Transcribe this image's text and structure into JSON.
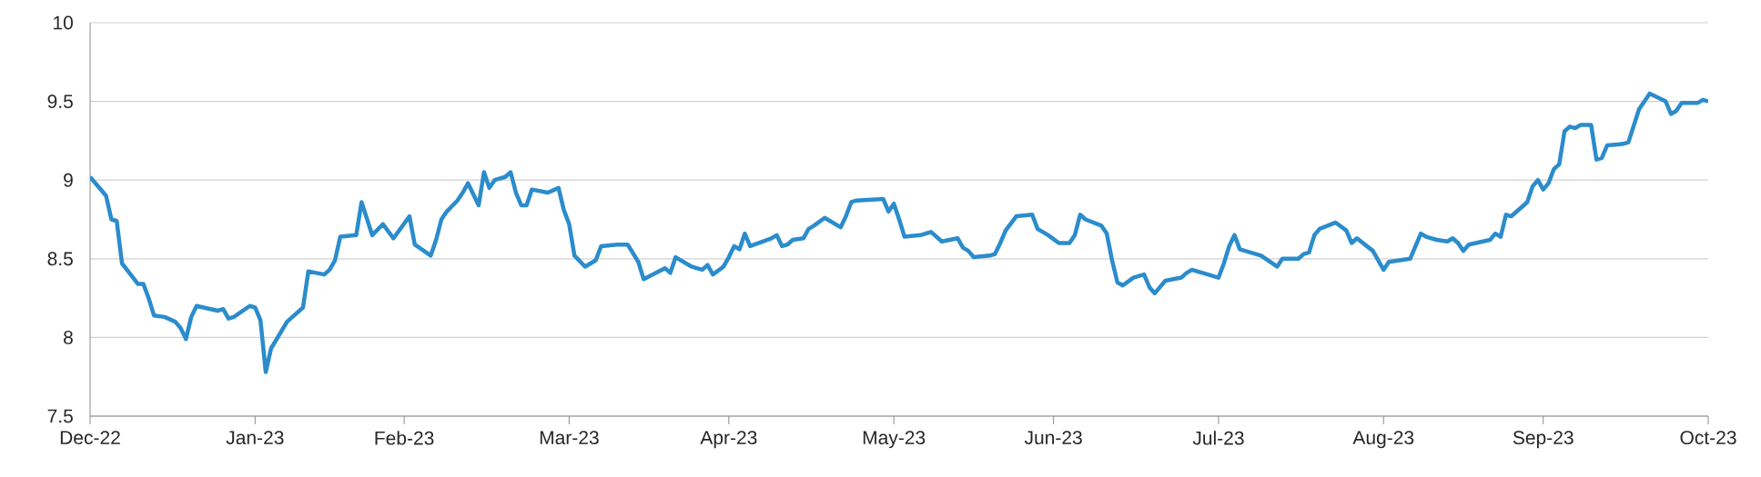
{
  "chart_data": {
    "type": "line",
    "x": [
      "2022-12-31",
      "2023-01-03",
      "2023-01-04",
      "2023-01-05",
      "2023-01-06",
      "2023-01-09",
      "2023-01-10",
      "2023-01-11",
      "2023-01-12",
      "2023-01-14",
      "2023-01-16",
      "2023-01-17",
      "2023-01-18",
      "2023-01-19",
      "2023-01-20",
      "2023-01-24",
      "2023-01-25",
      "2023-01-26",
      "2023-01-27",
      "2023-01-30",
      "2023-01-31",
      "2023-02-01",
      "2023-02-02",
      "2023-02-03",
      "2023-02-06",
      "2023-02-07",
      "2023-02-09",
      "2023-02-10",
      "2023-02-13",
      "2023-02-14",
      "2023-02-15",
      "2023-02-16",
      "2023-02-19",
      "2023-02-20",
      "2023-02-22",
      "2023-02-24",
      "2023-02-26",
      "2023-03-01",
      "2023-03-02",
      "2023-03-05",
      "2023-03-06",
      "2023-03-07",
      "2023-03-08",
      "2023-03-10",
      "2023-03-11",
      "2023-03-12",
      "2023-03-14",
      "2023-03-15",
      "2023-03-16",
      "2023-03-17",
      "2023-03-19",
      "2023-03-20",
      "2023-03-21",
      "2023-03-22",
      "2023-03-23",
      "2023-03-24",
      "2023-03-27",
      "2023-03-29",
      "2023-03-30",
      "2023-03-31",
      "2023-04-01",
      "2023-04-03",
      "2023-04-05",
      "2023-04-06",
      "2023-04-09",
      "2023-04-11",
      "2023-04-13",
      "2023-04-14",
      "2023-04-18",
      "2023-04-19",
      "2023-04-20",
      "2023-04-23",
      "2023-04-25",
      "2023-04-26",
      "2023-04-27",
      "2023-04-29",
      "2023-04-30",
      "2023-05-01",
      "2023-05-02",
      "2023-05-03",
      "2023-05-04",
      "2023-05-08",
      "2023-05-09",
      "2023-05-10",
      "2023-05-11",
      "2023-05-12",
      "2023-05-14",
      "2023-05-15",
      "2023-05-16",
      "2023-05-18",
      "2023-05-21",
      "2023-05-22",
      "2023-05-23",
      "2023-05-24",
      "2023-05-29",
      "2023-05-30",
      "2023-05-31",
      "2023-06-01",
      "2023-06-02",
      "2023-06-05",
      "2023-06-07",
      "2023-06-09",
      "2023-06-12",
      "2023-06-13",
      "2023-06-14",
      "2023-06-15",
      "2023-06-18",
      "2023-06-19",
      "2023-06-20",
      "2023-06-21",
      "2023-06-23",
      "2023-06-26",
      "2023-06-27",
      "2023-06-28",
      "2023-06-29",
      "2023-07-01",
      "2023-07-03",
      "2023-07-04",
      "2023-07-05",
      "2023-07-06",
      "2023-07-09",
      "2023-07-10",
      "2023-07-11",
      "2023-07-12",
      "2023-07-13",
      "2023-07-15",
      "2023-07-17",
      "2023-07-18",
      "2023-07-19",
      "2023-07-21",
      "2023-07-24",
      "2023-07-25",
      "2023-07-26",
      "2023-07-31",
      "2023-08-01",
      "2023-08-02",
      "2023-08-03",
      "2023-08-04",
      "2023-08-08",
      "2023-08-11",
      "2023-08-12",
      "2023-08-14",
      "2023-08-15",
      "2023-08-16",
      "2023-08-17",
      "2023-08-18",
      "2023-08-19",
      "2023-08-22",
      "2023-08-24",
      "2023-08-25",
      "2023-08-26",
      "2023-08-29",
      "2023-08-31",
      "2023-09-01",
      "2023-09-03",
      "2023-09-05",
      "2023-09-07",
      "2023-09-08",
      "2023-09-10",
      "2023-09-12",
      "2023-09-13",
      "2023-09-14",
      "2023-09-15",
      "2023-09-16",
      "2023-09-20",
      "2023-09-21",
      "2023-09-22",
      "2023-09-23",
      "2023-09-24",
      "2023-09-27",
      "2023-09-28",
      "2023-09-29",
      "2023-09-30",
      "2023-10-01",
      "2023-10-02",
      "2023-10-03",
      "2023-10-04",
      "2023-10-05",
      "2023-10-06",
      "2023-10-07",
      "2023-10-09",
      "2023-10-10",
      "2023-10-11",
      "2023-10-12",
      "2023-10-15",
      "2023-10-16",
      "2023-10-18",
      "2023-10-20",
      "2023-10-23",
      "2023-10-24",
      "2023-10-25",
      "2023-10-26",
      "2023-10-29",
      "2023-10-30",
      "2023-10-31"
    ],
    "values": [
      9.02,
      8.9,
      8.75,
      8.74,
      8.47,
      8.34,
      8.34,
      8.25,
      8.14,
      8.13,
      8.1,
      8.06,
      7.99,
      8.13,
      8.2,
      8.17,
      8.18,
      8.12,
      8.13,
      8.2,
      8.19,
      8.11,
      7.78,
      7.93,
      8.1,
      8.13,
      8.19,
      8.42,
      8.4,
      8.43,
      8.49,
      8.64,
      8.65,
      8.86,
      8.65,
      8.72,
      8.63,
      8.77,
      8.59,
      8.52,
      8.62,
      8.75,
      8.8,
      8.87,
      8.92,
      8.98,
      8.84,
      9.05,
      8.95,
      9.0,
      9.02,
      9.05,
      8.92,
      8.84,
      8.84,
      8.94,
      8.92,
      8.95,
      8.81,
      8.72,
      8.52,
      8.45,
      8.49,
      8.58,
      8.59,
      8.59,
      8.48,
      8.37,
      8.44,
      8.41,
      8.51,
      8.45,
      8.43,
      8.46,
      8.4,
      8.45,
      8.51,
      8.58,
      8.56,
      8.66,
      8.58,
      8.63,
      8.65,
      8.58,
      8.59,
      8.62,
      8.63,
      8.69,
      8.71,
      8.76,
      8.7,
      8.77,
      8.86,
      8.87,
      8.88,
      8.8,
      8.85,
      8.75,
      8.64,
      8.65,
      8.67,
      8.61,
      8.63,
      8.57,
      8.55,
      8.51,
      8.52,
      8.53,
      8.6,
      8.68,
      8.77,
      8.78,
      8.69,
      8.67,
      8.65,
      8.6,
      8.6,
      8.65,
      8.78,
      8.75,
      8.71,
      8.66,
      8.49,
      8.35,
      8.33,
      8.38,
      8.4,
      8.32,
      8.28,
      8.36,
      8.38,
      8.41,
      8.43,
      8.38,
      8.47,
      8.58,
      8.65,
      8.56,
      8.52,
      8.45,
      8.5,
      8.5,
      8.5,
      8.53,
      8.54,
      8.65,
      8.69,
      8.73,
      8.68,
      8.6,
      8.63,
      8.55,
      8.43,
      8.48,
      8.49,
      8.5,
      8.66,
      8.64,
      8.62,
      8.61,
      8.63,
      8.6,
      8.55,
      8.59,
      8.62,
      8.66,
      8.64,
      8.78,
      8.77,
      8.86,
      8.96,
      9.0,
      8.94,
      8.98,
      9.07,
      9.1,
      9.31,
      9.34,
      9.33,
      9.35,
      9.35,
      9.13,
      9.14,
      9.22,
      9.23,
      9.24,
      9.45,
      9.55,
      9.5,
      9.42,
      9.44,
      9.49,
      9.49,
      9.51,
      9.5
    ],
    "color": "#2b8ccc",
    "xlim": [
      "2022-12-31",
      "2023-10-31"
    ],
    "xticks": [
      {
        "value": "2022-12-31",
        "label": "Dec-22"
      },
      {
        "value": "2023-01-31",
        "label": "Jan-23"
      },
      {
        "value": "2023-02-28",
        "label": "Feb-23"
      },
      {
        "value": "2023-03-31",
        "label": "Mar-23"
      },
      {
        "value": "2023-04-30",
        "label": "Apr-23"
      },
      {
        "value": "2023-05-31",
        "label": "May-23"
      },
      {
        "value": "2023-06-30",
        "label": "Jun-23"
      },
      {
        "value": "2023-07-31",
        "label": "Jul-23"
      },
      {
        "value": "2023-08-31",
        "label": "Aug-23"
      },
      {
        "value": "2023-09-30",
        "label": "Sep-23"
      },
      {
        "value": "2023-10-31",
        "label": "Oct-23"
      }
    ],
    "ylim": [
      7.5,
      10
    ],
    "yticks": [
      7.5,
      8,
      8.5,
      9,
      9.5,
      10
    ],
    "grid": "y",
    "marker": "none",
    "line_style": "solid"
  }
}
